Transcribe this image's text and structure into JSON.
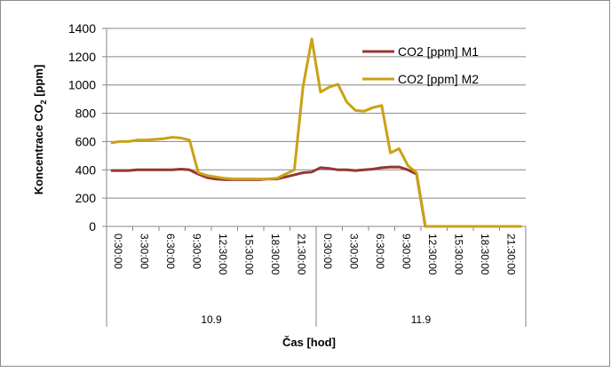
{
  "chart_data": {
    "type": "line",
    "title": "",
    "xlabel": "Čas [hod]",
    "ylabel": "Koncentrace CO",
    "ylabel_subscript": "2",
    "ylabel_suffix": " [ppm]",
    "ylim": [
      0,
      1400
    ],
    "yticks": [
      0,
      200,
      400,
      600,
      800,
      1000,
      1200,
      1400
    ],
    "grid": true,
    "legend_position": "right",
    "x_tick_labels": [
      "0:30:00",
      "3:30:00",
      "6:30:00",
      "9:30:00",
      "12:30:00",
      "15:30:00",
      "18:30:00",
      "21:30:00",
      "0:30:00",
      "3:30:00",
      "6:30:00",
      "9:30:00",
      "12:30:00",
      "15:30:00",
      "18:30:00",
      "21:30:00"
    ],
    "x_groups": [
      "10.9",
      "11.9"
    ],
    "x": [
      "0:30",
      "1:30",
      "2:30",
      "3:30",
      "4:30",
      "5:30",
      "6:30",
      "7:30",
      "8:30",
      "9:30",
      "10:30",
      "11:30",
      "12:30",
      "13:30",
      "14:30",
      "15:30",
      "16:30",
      "17:30",
      "18:30",
      "19:30",
      "20:30",
      "21:30",
      "22:30",
      "23:30",
      "0:30",
      "1:30",
      "2:30",
      "3:30",
      "4:30",
      "5:30",
      "6:30",
      "7:30",
      "8:30",
      "9:30",
      "10:30",
      "11:30",
      "12:30",
      "13:30",
      "14:30",
      "15:30",
      "16:30",
      "17:30",
      "18:30",
      "19:30",
      "20:30",
      "21:30",
      "22:30",
      "23:30"
    ],
    "series": [
      {
        "name": "CO2 [ppm] M1",
        "color": "#943634",
        "values": [
          395,
          395,
          395,
          400,
          400,
          400,
          400,
          400,
          405,
          400,
          370,
          345,
          335,
          330,
          330,
          330,
          330,
          330,
          335,
          335,
          350,
          365,
          380,
          385,
          415,
          410,
          400,
          400,
          395,
          400,
          405,
          415,
          420,
          420,
          400,
          370,
          0,
          0,
          0,
          0,
          0,
          0,
          0,
          0,
          0,
          0,
          0,
          0
        ]
      },
      {
        "name": "CO2 [ppm] M2",
        "color": "#c9a215",
        "values": [
          590,
          600,
          600,
          610,
          610,
          615,
          620,
          630,
          625,
          610,
          380,
          360,
          350,
          340,
          335,
          335,
          335,
          335,
          335,
          340,
          370,
          400,
          990,
          1325,
          950,
          985,
          1005,
          880,
          820,
          815,
          840,
          855,
          520,
          550,
          430,
          380,
          0,
          0,
          0,
          0,
          0,
          0,
          0,
          0,
          0,
          0,
          0,
          0
        ]
      }
    ]
  }
}
